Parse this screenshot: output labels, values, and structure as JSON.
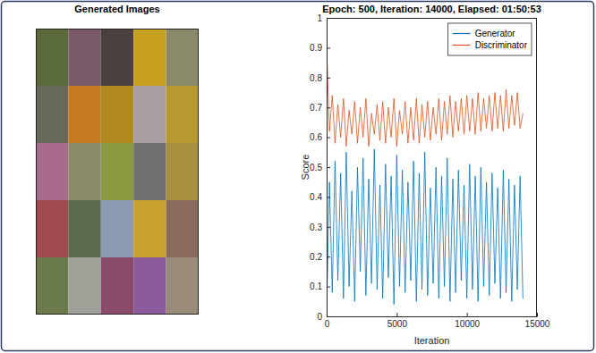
{
  "chart_data": [
    {
      "type": "image_grid",
      "title": "Generated Images",
      "colors": [
        "#5a6a3a",
        "#7a5a6a",
        "#4a4040",
        "#c8a020",
        "#8a8a6a",
        "#6a6a5a",
        "#c87a20",
        "#b08a20",
        "#a8a0a0",
        "#b89a30",
        "#a86a8a",
        "#8a8a6a",
        "#8a9a40",
        "#707070",
        "#a89040",
        "#a04a50",
        "#5a6a4a",
        "#8a9ab0",
        "#c8a030",
        "#8a6a5a",
        "#6a7a4a",
        "#a0a098",
        "#8a4a6a",
        "#8a5a9a",
        "#9a8a7a"
      ]
    },
    {
      "type": "line",
      "title": "Epoch: 500, Iteration: 14000, Elapsed: 01:50:53",
      "x_label": "Iteration",
      "y_label": "Score",
      "x": [
        0,
        200,
        400,
        600,
        800,
        1000,
        1200,
        1400,
        1600,
        1800,
        2000,
        2200,
        2400,
        2600,
        2800,
        3000,
        3200,
        3400,
        3600,
        3800,
        4000,
        4200,
        4400,
        4600,
        4800,
        5000,
        5200,
        5400,
        5600,
        5800,
        6000,
        6200,
        6400,
        6600,
        6800,
        7000,
        7200,
        7400,
        7600,
        7800,
        8000,
        8200,
        8400,
        8600,
        8800,
        9000,
        9200,
        9400,
        9600,
        9800,
        10000,
        10200,
        10400,
        10600,
        10800,
        11000,
        11200,
        11400,
        11600,
        11800,
        12000,
        12200,
        12400,
        12600,
        12800,
        13000,
        13200,
        13400,
        13600,
        13800,
        14000
      ],
      "series": [
        {
          "name": "Generator",
          "color": "#0072bd",
          "values": [
            0.02,
            0.45,
            0.08,
            0.52,
            0.12,
            0.48,
            0.06,
            0.55,
            0.1,
            0.42,
            0.05,
            0.5,
            0.15,
            0.53,
            0.07,
            0.46,
            0.11,
            0.56,
            0.09,
            0.44,
            0.06,
            0.51,
            0.13,
            0.47,
            0.04,
            0.54,
            0.1,
            0.49,
            0.08,
            0.45,
            0.12,
            0.52,
            0.05,
            0.48,
            0.09,
            0.55,
            0.07,
            0.43,
            0.11,
            0.5,
            0.06,
            0.47,
            0.1,
            0.53,
            0.05,
            0.46,
            0.08,
            0.49,
            0.12,
            0.44,
            0.06,
            0.51,
            0.09,
            0.47,
            0.05,
            0.5,
            0.1,
            0.45,
            0.07,
            0.48,
            0.11,
            0.43,
            0.06,
            0.49,
            0.08,
            0.46,
            0.05,
            0.44,
            0.09,
            0.47,
            0.06
          ]
        },
        {
          "name": "Discriminator",
          "color": "#d95319",
          "values": [
            0.9,
            0.62,
            0.74,
            0.58,
            0.71,
            0.6,
            0.73,
            0.57,
            0.69,
            0.61,
            0.72,
            0.58,
            0.7,
            0.6,
            0.73,
            0.57,
            0.68,
            0.61,
            0.71,
            0.59,
            0.72,
            0.58,
            0.7,
            0.6,
            0.73,
            0.57,
            0.69,
            0.61,
            0.72,
            0.58,
            0.7,
            0.59,
            0.73,
            0.58,
            0.71,
            0.6,
            0.72,
            0.59,
            0.7,
            0.61,
            0.73,
            0.59,
            0.72,
            0.61,
            0.74,
            0.6,
            0.72,
            0.62,
            0.73,
            0.61,
            0.74,
            0.62,
            0.73,
            0.61,
            0.75,
            0.62,
            0.73,
            0.63,
            0.74,
            0.62,
            0.75,
            0.63,
            0.74,
            0.62,
            0.76,
            0.63,
            0.74,
            0.64,
            0.75,
            0.63,
            0.68
          ]
        }
      ],
      "xlim": [
        0,
        15000
      ],
      "xticks": [
        0,
        5000,
        10000,
        15000
      ],
      "ylim": [
        0,
        1
      ],
      "yticks": [
        0,
        0.1,
        0.2,
        0.3,
        0.4,
        0.5,
        0.6,
        0.7,
        0.8,
        0.9,
        1
      ],
      "grid": false,
      "legend": "northeast"
    }
  ]
}
